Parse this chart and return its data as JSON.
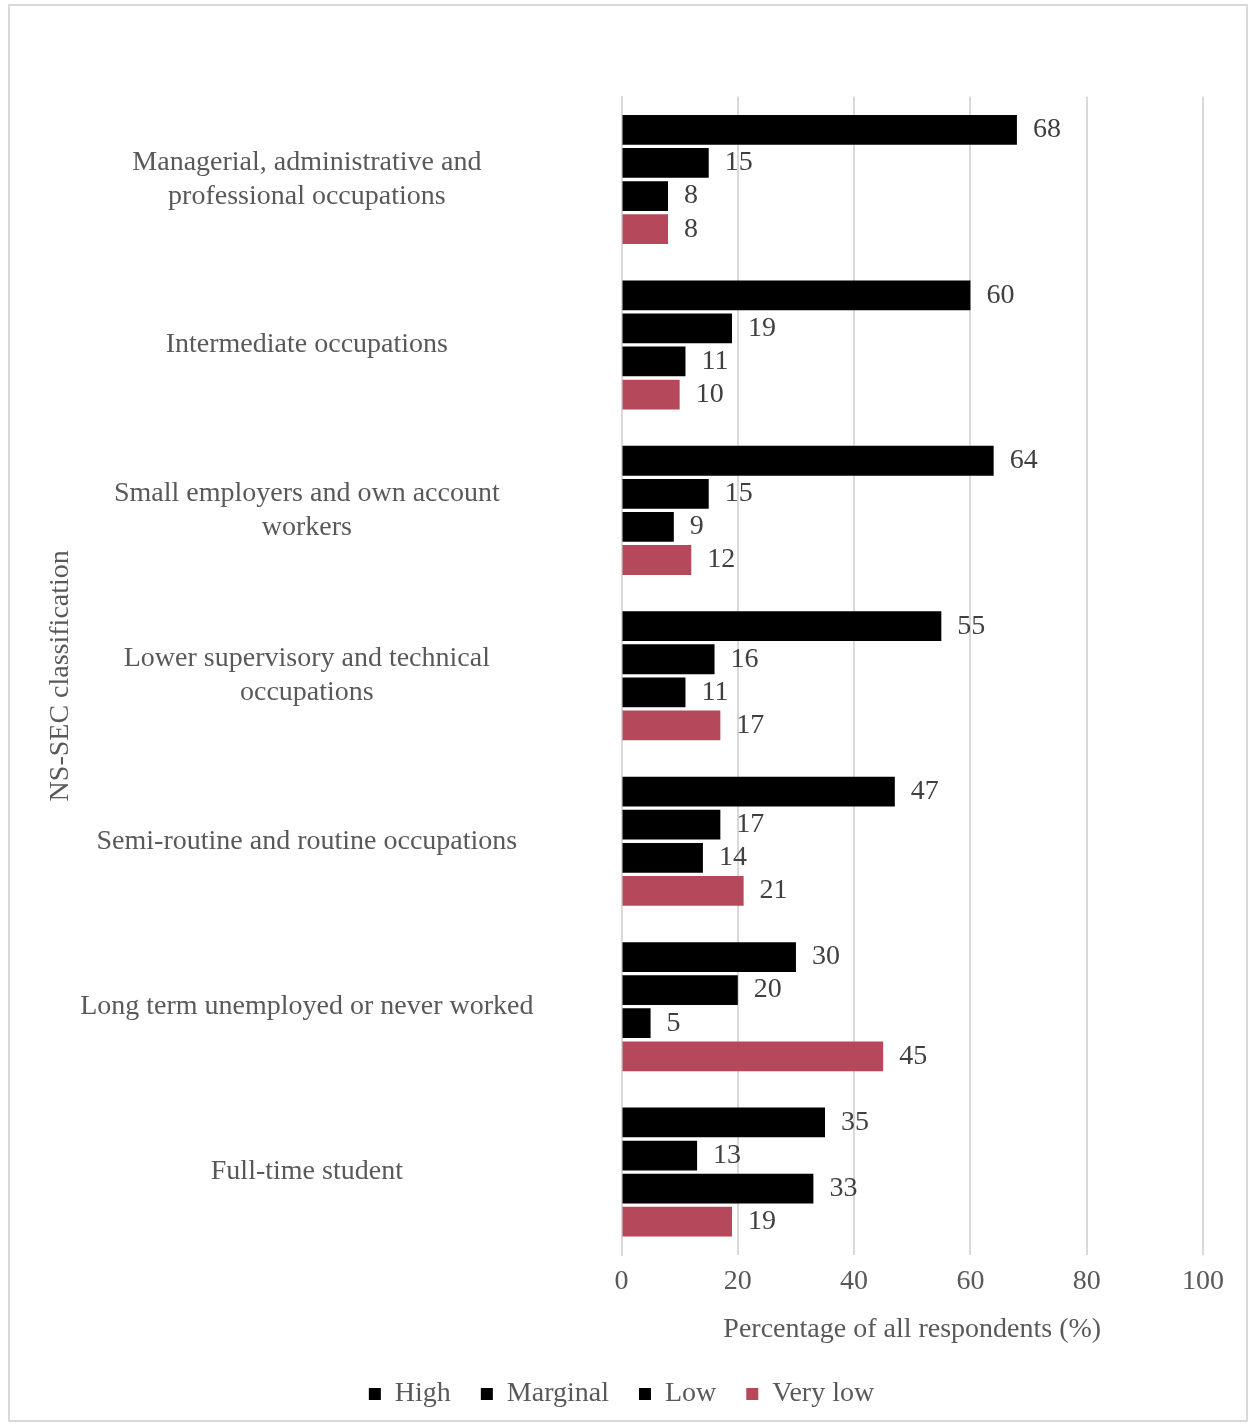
{
  "chart_data": {
    "type": "bar",
    "orientation": "horizontal",
    "xlabel": "Percentage of all respondents (%)",
    "ylabel": "NS-SEC classification",
    "categories": [
      "Managerial, administrative and professional occupations",
      "Intermediate occupations",
      "Small employers and own account workers",
      "Lower supervisory and technical occupations",
      "Semi-routine and routine occupations",
      "Long term unemployed or never worked",
      "Full-time student"
    ],
    "series": [
      {
        "name": "High",
        "color": "#000000",
        "values": [
          68,
          60,
          64,
          55,
          47,
          30,
          35
        ]
      },
      {
        "name": "Marginal",
        "color": "#000000",
        "values": [
          15,
          19,
          15,
          16,
          17,
          20,
          13
        ]
      },
      {
        "name": "Low",
        "color": "#000000",
        "values": [
          8,
          11,
          9,
          11,
          14,
          5,
          33
        ]
      },
      {
        "name": "Very low",
        "color": "#b5485a",
        "values": [
          8,
          10,
          12,
          17,
          21,
          45,
          19
        ]
      }
    ],
    "xlim": [
      0,
      100
    ],
    "xticks": [
      0,
      20,
      40,
      60,
      80,
      100
    ],
    "grid": "x",
    "legend": "bottom",
    "data_labels": true
  }
}
